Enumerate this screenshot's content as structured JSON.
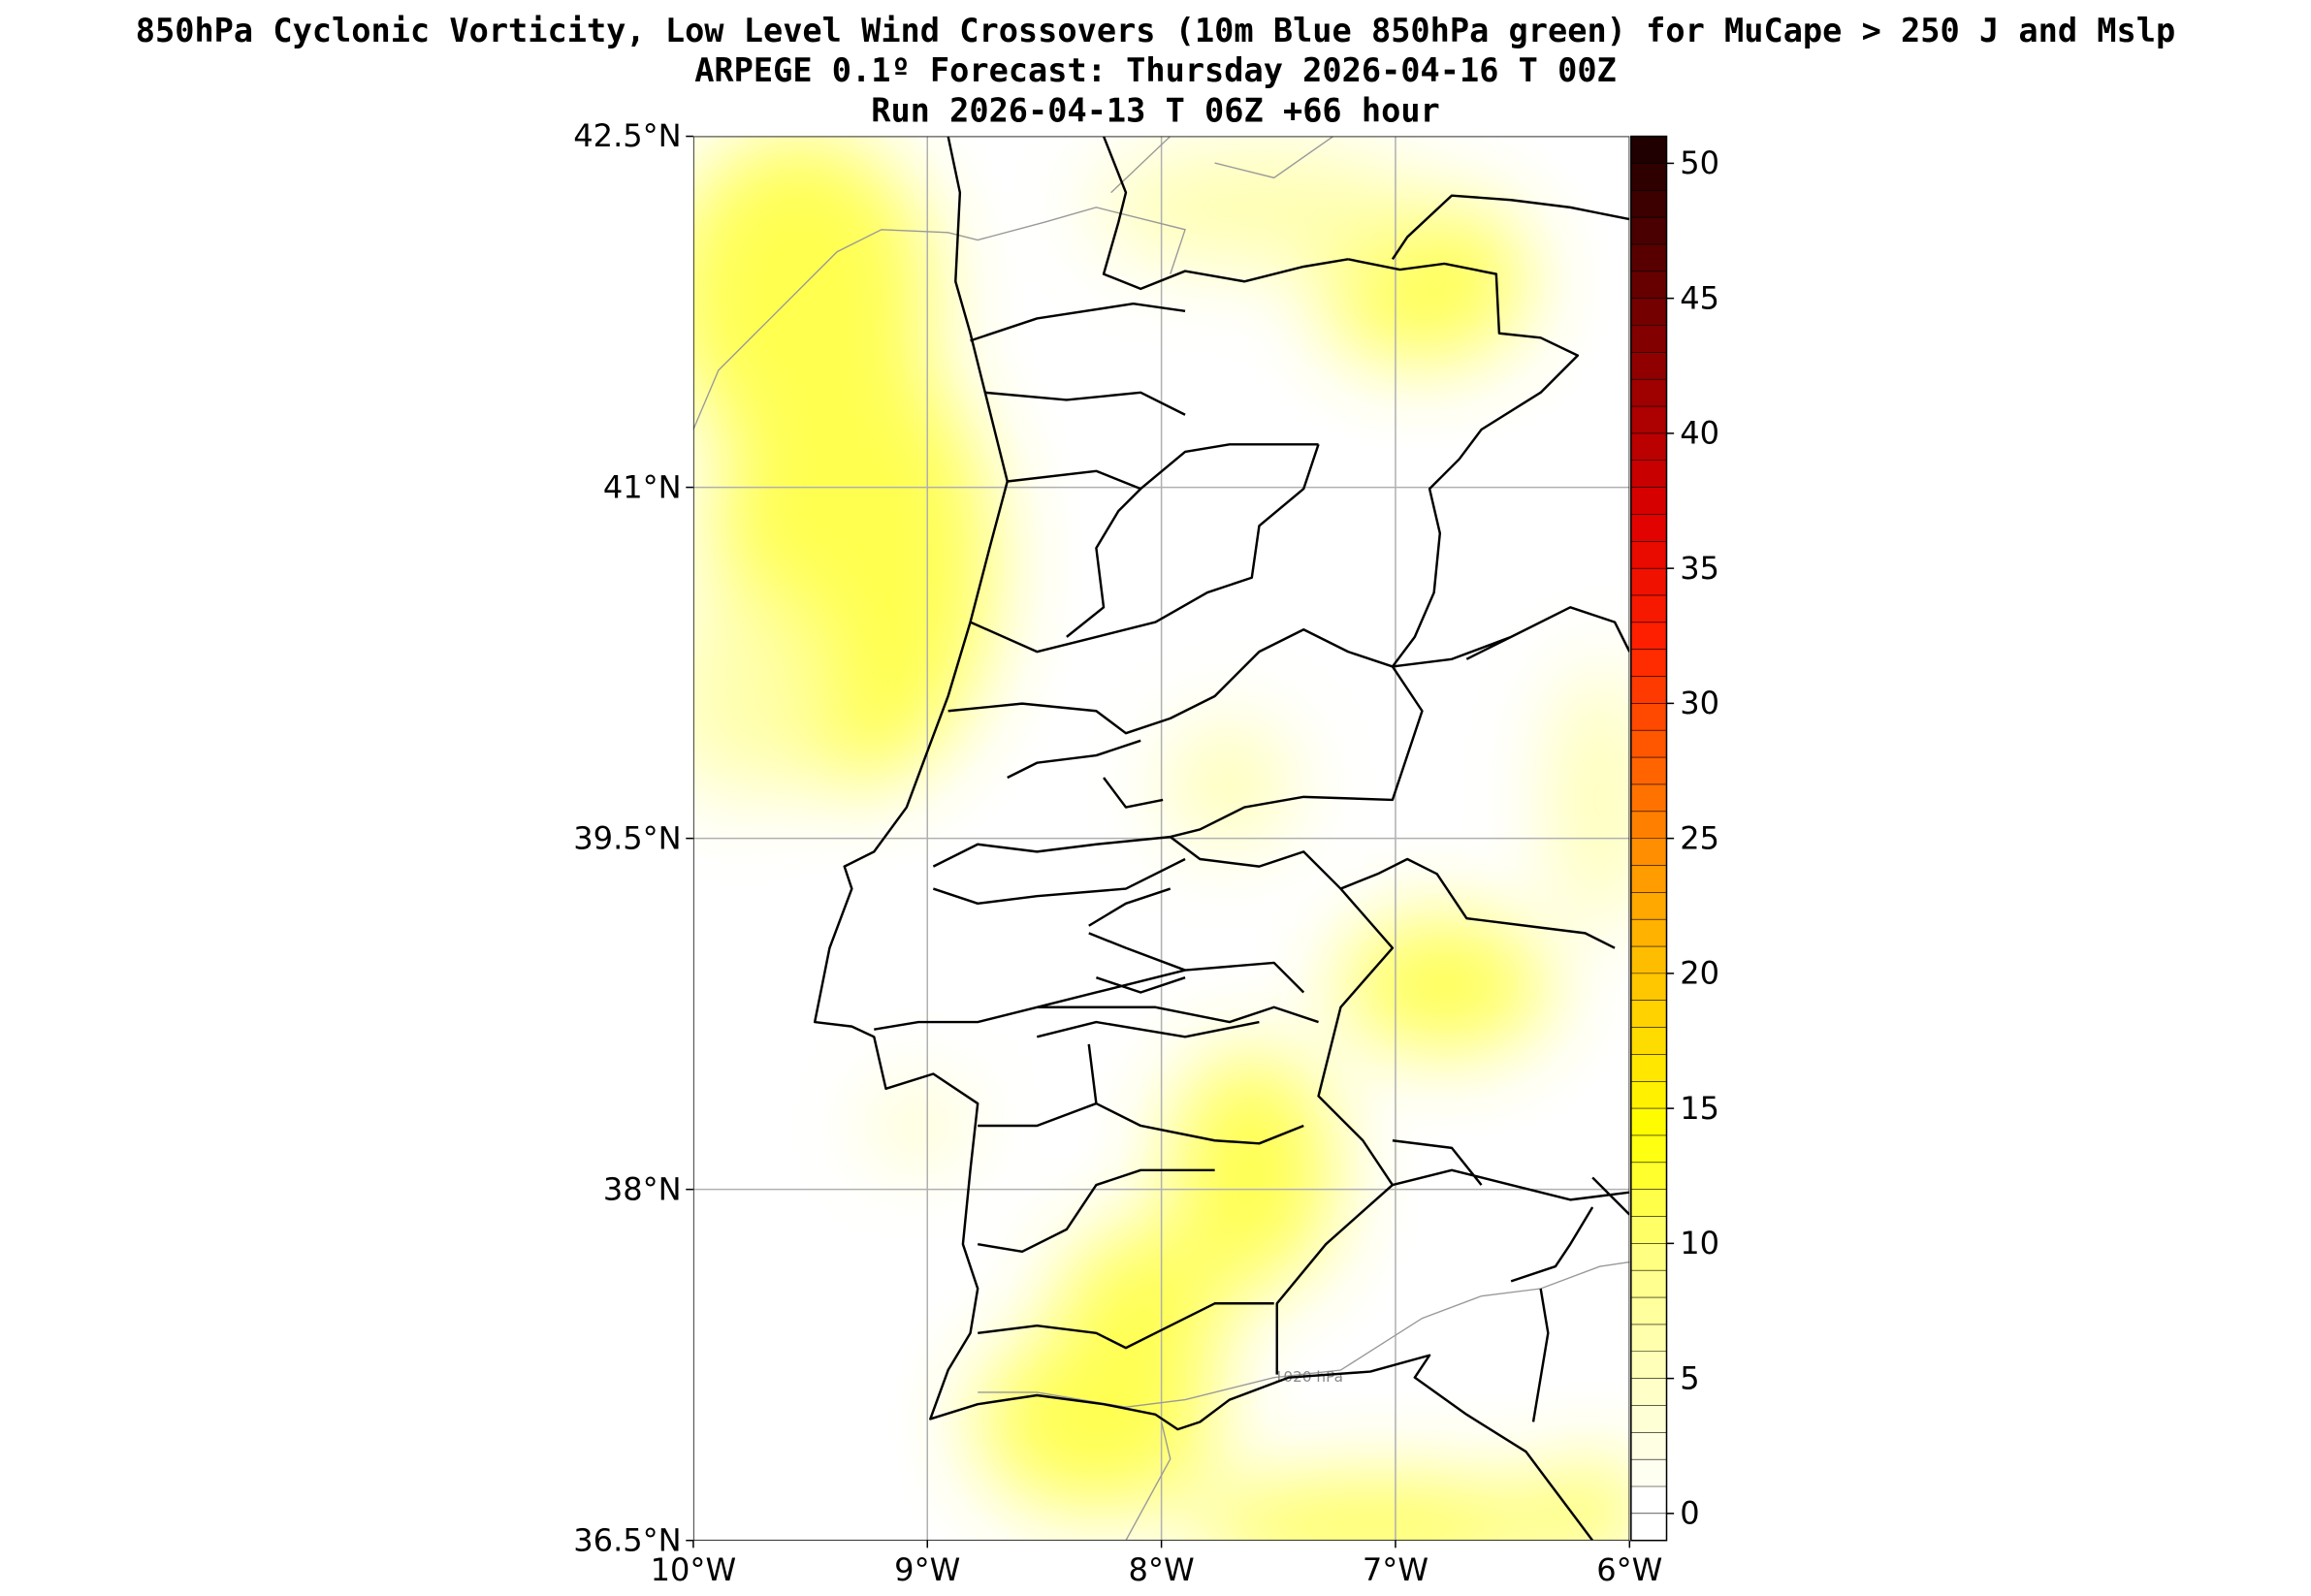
{
  "title": {
    "line1": "850hPa Cyclonic Vorticity, Low Level Wind Crossovers (10m Blue 850hPa green) for MuCape > 250 J and Mslp",
    "line2": "ARPEGE 0.1º Forecast: Thursday 2026-04-16 T 00Z",
    "line3": "Run 2026-04-13 T 06Z +66 hour"
  },
  "map": {
    "lon_range": [
      -10,
      -6
    ],
    "lat_range": [
      36.5,
      42.5
    ],
    "lat_ticks": [
      {
        "value": 42.5,
        "label": "42.5°N"
      },
      {
        "value": 41,
        "label": "41°N"
      },
      {
        "value": 39.5,
        "label": "39.5°N"
      },
      {
        "value": 38,
        "label": "38°N"
      },
      {
        "value": 36.5,
        "label": "36.5°N"
      }
    ],
    "lon_ticks": [
      {
        "value": -10,
        "label": "10°W"
      },
      {
        "value": -9,
        "label": "9°W"
      },
      {
        "value": -8,
        "label": "8°W"
      },
      {
        "value": -7,
        "label": "7°W"
      },
      {
        "value": -6,
        "label": "6°W"
      }
    ],
    "isobar_label": "1020 hPa"
  },
  "colorbar": {
    "range": [
      -1,
      51
    ],
    "ticks": [
      {
        "value": 0,
        "label": "0"
      },
      {
        "value": 5,
        "label": "5"
      },
      {
        "value": 10,
        "label": "10"
      },
      {
        "value": 15,
        "label": "15"
      },
      {
        "value": 20,
        "label": "20"
      },
      {
        "value": 25,
        "label": "25"
      },
      {
        "value": 30,
        "label": "30"
      },
      {
        "value": 35,
        "label": "35"
      },
      {
        "value": 40,
        "label": "40"
      },
      {
        "value": 45,
        "label": "45"
      },
      {
        "value": 50,
        "label": "50"
      }
    ],
    "colors": [
      "#ffffff",
      "#ffffc0",
      "#ffff80",
      "#ffff00",
      "#ffd000",
      "#ffa000",
      "#ff6000",
      "#ff2000",
      "#e00000",
      "#a00000",
      "#600000",
      "#200000"
    ]
  }
}
